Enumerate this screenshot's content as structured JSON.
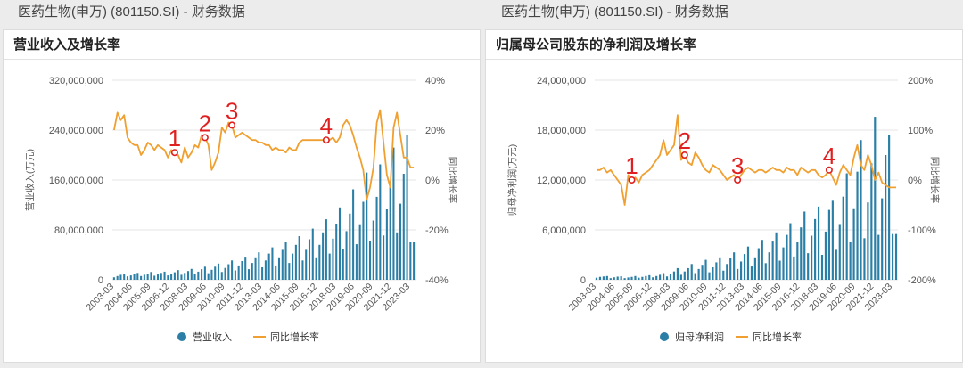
{
  "left": {
    "header": "医药生物(申万) (801150.SI) - 财务数据",
    "title": "营业收入及增长率"
  },
  "right": {
    "header": "医药生物(申万) (801150.SI) - 财务数据",
    "title": "归属母公司股东的净利润及增长率"
  },
  "colors": {
    "bar": "#2b7fa6",
    "line": "#f0a030",
    "marker": "#e02020",
    "label": "#e02020"
  },
  "chart_data": [
    {
      "type": "bar",
      "title": "营业收入及增长率",
      "ylabel": "营业收入(万元)",
      "y2label": "同比增长率",
      "ylim": [
        0,
        320000000
      ],
      "y2lim": [
        -40,
        40
      ],
      "yticks": [
        "320,000,000",
        "240,000,000",
        "160,000,000",
        "80,000,000",
        "0"
      ],
      "y2ticks": [
        "40%",
        "20%",
        "0%",
        "-20%",
        "-40%"
      ],
      "xticks": [
        "2003-03",
        "2004-06",
        "2005-09",
        "2006-12",
        "2008-03",
        "2009-06",
        "2010-09",
        "2011-12",
        "2013-03",
        "2014-06",
        "2015-09",
        "2016-12",
        "2018-03",
        "2019-06",
        "2020-09",
        "2021-12",
        "2023-03"
      ],
      "legend": [
        "营业收入",
        "同比增长率"
      ],
      "annotations": [
        {
          "label": "1",
          "index": 18
        },
        {
          "label": "2",
          "index": 27
        },
        {
          "label": "3",
          "index": 35
        },
        {
          "label": "4",
          "index": 63
        }
      ],
      "series": [
        {
          "name": "营业收入",
          "values": [
            4000000,
            6000000,
            8000000,
            9500000,
            5500000,
            7000000,
            9000000,
            11000000,
            6000000,
            8000000,
            10000000,
            12500000,
            6500000,
            8500000,
            11000000,
            13000000,
            7000000,
            9500000,
            12000000,
            15500000,
            8000000,
            11000000,
            14000000,
            17500000,
            9000000,
            13000000,
            17000000,
            21000000,
            10500000,
            16000000,
            21000000,
            26000000,
            12500000,
            19000000,
            25000000,
            31000000,
            15000000,
            23000000,
            30000000,
            37000000,
            17000000,
            27000000,
            36000000,
            44000000,
            20000000,
            31000000,
            42000000,
            52000000,
            23000000,
            36000000,
            48000000,
            60000000,
            27000000,
            42000000,
            56000000,
            70000000,
            31000000,
            48000000,
            65000000,
            82000000,
            36000000,
            56000000,
            76000000,
            97000000,
            42000000,
            66000000,
            90000000,
            116000000,
            50000000,
            78000000,
            106000000,
            145000000,
            57000000,
            89000000,
            125000000,
            172000000,
            62000000,
            95000000,
            133000000,
            185000000,
            71000000,
            113000000,
            158000000,
            212000000,
            76000000,
            122000000,
            170000000,
            232000000,
            60000000,
            60000000
          ]
        },
        {
          "name": "同比增长率",
          "values": [
            20,
            27,
            24,
            26,
            17,
            15,
            14,
            14,
            10,
            12,
            15,
            14,
            12,
            14,
            13,
            12,
            9,
            12,
            11,
            10,
            7,
            13,
            9,
            11,
            14,
            13,
            18,
            17,
            14,
            4,
            7,
            11,
            21,
            19,
            23,
            22,
            17,
            18,
            19,
            18,
            17,
            16,
            16,
            15,
            15,
            14,
            14,
            12,
            13,
            12,
            12,
            11,
            13,
            12,
            12,
            15,
            16,
            16,
            16,
            16,
            16,
            16,
            16,
            16,
            16,
            17,
            15,
            17,
            22,
            24,
            22,
            18,
            13,
            9,
            4,
            -8,
            -3,
            5,
            23,
            28,
            15,
            2,
            -3,
            21,
            27,
            18,
            9,
            9,
            5,
            5
          ]
        }
      ]
    },
    {
      "type": "bar",
      "title": "归属母公司股东的净利润及增长率",
      "ylabel": "归母净利润(万元)",
      "y2label": "同比增长率",
      "ylim": [
        0,
        24000000
      ],
      "y2lim": [
        -200,
        200
      ],
      "yticks": [
        "24,000,000",
        "18,000,000",
        "12,000,000",
        "6,000,000",
        "0"
      ],
      "y2ticks": [
        "200%",
        "100%",
        "0%",
        "-100%",
        "-200%"
      ],
      "xticks": [
        "2003-03",
        "2004-06",
        "2005-09",
        "2006-12",
        "2008-03",
        "2009-06",
        "2010-09",
        "2011-12",
        "2013-03",
        "2014-06",
        "2015-09",
        "2016-12",
        "2018-03",
        "2019-06",
        "2020-09",
        "2021-12",
        "2023-03"
      ],
      "legend": [
        "归母净利润",
        "同比增长率"
      ],
      "annotations": [
        {
          "label": "1",
          "index": 10
        },
        {
          "label": "2",
          "index": 25
        },
        {
          "label": "3",
          "index": 40
        },
        {
          "label": "4",
          "index": 66
        }
      ],
      "series": [
        {
          "name": "归母净利润",
          "values": [
            250000,
            350000,
            400000,
            450000,
            200000,
            300000,
            380000,
            420000,
            200000,
            280000,
            350000,
            450000,
            250000,
            350000,
            450000,
            550000,
            300000,
            450000,
            600000,
            800000,
            400000,
            700000,
            1000000,
            1400000,
            600000,
            1000000,
            1400000,
            1900000,
            800000,
            1300000,
            1800000,
            2400000,
            900000,
            1500000,
            2100000,
            2700000,
            1100000,
            1900000,
            2600000,
            3300000,
            1300000,
            2200000,
            3100000,
            4000000,
            1600000,
            2700000,
            3800000,
            4800000,
            2000000,
            3300000,
            4600000,
            5700000,
            2300000,
            3900000,
            5400000,
            6800000,
            2800000,
            4500000,
            6300000,
            8200000,
            3200000,
            5300000,
            7300000,
            8800000,
            3000000,
            5800000,
            8400000,
            9500000,
            3600000,
            6700000,
            10000000,
            12800000,
            4500000,
            8600000,
            13000000,
            16800000,
            5000000,
            9300000,
            14000000,
            19600000,
            5400000,
            9800000,
            15000000,
            17400000,
            5500000,
            5500000
          ]
        },
        {
          "name": "同比增长率",
          "values": [
            20,
            20,
            25,
            15,
            20,
            10,
            0,
            -10,
            -50,
            10,
            0,
            5,
            -5,
            10,
            15,
            20,
            30,
            40,
            50,
            80,
            50,
            60,
            70,
            130,
            40,
            50,
            35,
            30,
            55,
            45,
            30,
            20,
            15,
            30,
            25,
            20,
            10,
            0,
            5,
            10,
            0,
            10,
            20,
            25,
            20,
            15,
            20,
            20,
            15,
            20,
            25,
            20,
            20,
            15,
            25,
            20,
            20,
            10,
            25,
            20,
            15,
            20,
            20,
            10,
            5,
            10,
            20,
            5,
            -10,
            15,
            30,
            20,
            10,
            45,
            70,
            30,
            20,
            50,
            30,
            0,
            15,
            -5,
            -10,
            -15,
            -15,
            -15
          ]
        }
      ]
    }
  ]
}
